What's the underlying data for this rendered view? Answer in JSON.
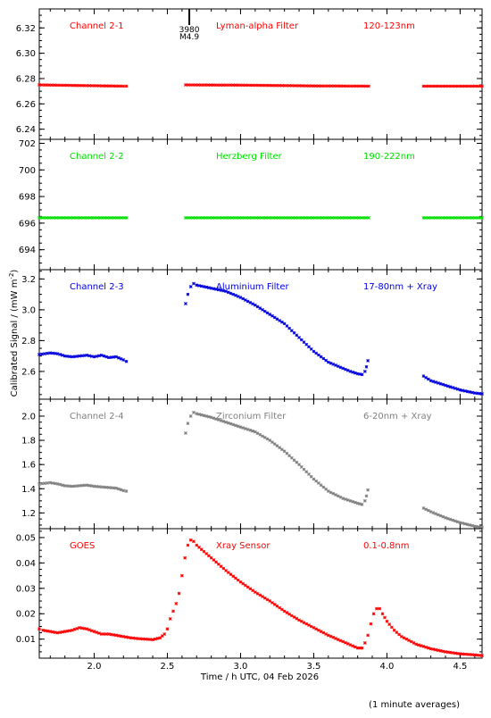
{
  "chart_data": [
    {
      "type": "scatter",
      "panel": "Channel 2-1",
      "labels": [
        "Channel 2-1",
        "Lyman-alpha Filter",
        "120-123nm"
      ],
      "color": "#ff0000",
      "ylim": [
        6.232,
        6.335
      ],
      "yticks": [
        6.24,
        6.26,
        6.28,
        6.3,
        6.32
      ],
      "ytick_labels": [
        "6.24",
        "6.26",
        "6.28",
        "6.30",
        "6.32"
      ],
      "annotation": {
        "x": 2.65,
        "lines": [
          "3980",
          "M4.9"
        ]
      },
      "series": [
        {
          "points": [
            [
              1.625,
              6.275
            ],
            [
              1.9,
              6.2745
            ],
            [
              2.2,
              6.274
            ],
            [
              2.22,
              6.274
            ]
          ]
        },
        {
          "points": [
            [
              2.625,
              6.275
            ],
            [
              3.0,
              6.2748
            ],
            [
              3.5,
              6.2742
            ],
            [
              3.875,
              6.274
            ]
          ]
        },
        {
          "points": [
            [
              4.25,
              6.274
            ],
            [
              4.65,
              6.274
            ]
          ]
        }
      ]
    },
    {
      "type": "scatter",
      "panel": "Channel 2-2",
      "labels": [
        "Channel 2-2",
        "Herzberg Filter",
        "190-222nm"
      ],
      "color": "#00e000",
      "ylim": [
        692.5,
        702.3
      ],
      "yticks": [
        694,
        696,
        698,
        700,
        702
      ],
      "ytick_labels": [
        "694",
        "696",
        "698",
        "700",
        "702"
      ],
      "series": [
        {
          "points": [
            [
              1.625,
              696.4
            ],
            [
              2.22,
              696.4
            ]
          ]
        },
        {
          "points": [
            [
              2.625,
              696.4
            ],
            [
              3.875,
              696.4
            ]
          ]
        },
        {
          "points": [
            [
              4.25,
              696.4
            ],
            [
              4.65,
              696.4
            ]
          ]
        }
      ]
    },
    {
      "type": "scatter",
      "panel": "Channel 2-3",
      "labels": [
        "Channel 2-3",
        "Aluminium Filter",
        "17-80nm + Xray"
      ],
      "color": "#0000dd",
      "ylim": [
        2.42,
        3.26
      ],
      "yticks": [
        2.6,
        2.8,
        3.0,
        3.2
      ],
      "ytick_labels": [
        "2.6",
        "2.8",
        "3.0",
        "3.2"
      ],
      "series": [
        {
          "points": [
            [
              1.625,
              2.71
            ],
            [
              1.7,
              2.72
            ],
            [
              1.75,
              2.715
            ],
            [
              1.8,
              2.7
            ],
            [
              1.85,
              2.695
            ],
            [
              1.9,
              2.7
            ],
            [
              1.95,
              2.705
            ],
            [
              2.0,
              2.695
            ],
            [
              2.05,
              2.705
            ],
            [
              2.1,
              2.69
            ],
            [
              2.15,
              2.695
            ],
            [
              2.2,
              2.675
            ],
            [
              2.22,
              2.665
            ]
          ]
        },
        {
          "points": [
            [
              2.625,
              3.04
            ],
            [
              2.64,
              3.1
            ],
            [
              2.66,
              3.15
            ],
            [
              2.68,
              3.17
            ],
            [
              2.7,
              3.16
            ],
            [
              2.75,
              3.15
            ],
            [
              2.8,
              3.14
            ],
            [
              2.9,
              3.12
            ],
            [
              3.0,
              3.08
            ],
            [
              3.1,
              3.03
            ],
            [
              3.15,
              3.0
            ],
            [
              3.2,
              2.97
            ],
            [
              3.3,
              2.91
            ],
            [
              3.4,
              2.82
            ],
            [
              3.5,
              2.73
            ],
            [
              3.6,
              2.66
            ],
            [
              3.7,
              2.62
            ],
            [
              3.75,
              2.6
            ],
            [
              3.8,
              2.585
            ],
            [
              3.83,
              2.58
            ],
            [
              3.85,
              2.6
            ],
            [
              3.86,
              2.63
            ],
            [
              3.87,
              2.67
            ]
          ]
        },
        {
          "points": [
            [
              4.25,
              2.57
            ],
            [
              4.3,
              2.54
            ],
            [
              4.4,
              2.51
            ],
            [
              4.5,
              2.48
            ],
            [
              4.6,
              2.46
            ],
            [
              4.65,
              2.455
            ]
          ]
        }
      ]
    },
    {
      "type": "scatter",
      "panel": "Channel 2-4",
      "labels": [
        "Channel 2-4",
        "Zirconium Filter",
        "6-20nm + Xray"
      ],
      "color": "#808080",
      "ylim": [
        1.07,
        2.14
      ],
      "yticks": [
        1.2,
        1.4,
        1.6,
        1.8,
        2.0
      ],
      "ytick_labels": [
        "1.2",
        "1.4",
        "1.6",
        "1.8",
        "2.0"
      ],
      "series": [
        {
          "points": [
            [
              1.625,
              1.44
            ],
            [
              1.7,
              1.45
            ],
            [
              1.75,
              1.44
            ],
            [
              1.8,
              1.425
            ],
            [
              1.85,
              1.42
            ],
            [
              1.9,
              1.425
            ],
            [
              1.95,
              1.43
            ],
            [
              2.0,
              1.42
            ],
            [
              2.05,
              1.415
            ],
            [
              2.1,
              1.41
            ],
            [
              2.15,
              1.405
            ],
            [
              2.2,
              1.385
            ],
            [
              2.22,
              1.38
            ]
          ]
        },
        {
          "points": [
            [
              2.625,
              1.86
            ],
            [
              2.64,
              1.94
            ],
            [
              2.66,
              2.0
            ],
            [
              2.68,
              2.03
            ],
            [
              2.7,
              2.02
            ],
            [
              2.8,
              1.99
            ],
            [
              2.9,
              1.95
            ],
            [
              3.0,
              1.91
            ],
            [
              3.1,
              1.87
            ],
            [
              3.2,
              1.8
            ],
            [
              3.3,
              1.71
            ],
            [
              3.4,
              1.6
            ],
            [
              3.5,
              1.48
            ],
            [
              3.6,
              1.38
            ],
            [
              3.7,
              1.32
            ],
            [
              3.75,
              1.3
            ],
            [
              3.8,
              1.28
            ],
            [
              3.83,
              1.27
            ],
            [
              3.85,
              1.3
            ],
            [
              3.86,
              1.34
            ],
            [
              3.87,
              1.39
            ]
          ]
        },
        {
          "points": [
            [
              4.25,
              1.24
            ],
            [
              4.3,
              1.21
            ],
            [
              4.4,
              1.16
            ],
            [
              4.5,
              1.12
            ],
            [
              4.6,
              1.09
            ],
            [
              4.65,
              1.08
            ]
          ]
        }
      ]
    },
    {
      "type": "scatter",
      "panel": "GOES",
      "labels": [
        "GOES",
        "Xray Sensor",
        "0.1-0.8nm"
      ],
      "color": "#ff0000",
      "ylim": [
        0.0025,
        0.0535
      ],
      "yticks": [
        0.01,
        0.02,
        0.03,
        0.04,
        0.05
      ],
      "ytick_labels": [
        "0.01",
        "0.02",
        "0.03",
        "0.04",
        "0.05"
      ],
      "series": [
        {
          "points": [
            [
              1.625,
              0.014
            ],
            [
              1.65,
              0.0135
            ],
            [
              1.7,
              0.013
            ],
            [
              1.75,
              0.0125
            ],
            [
              1.8,
              0.013
            ],
            [
              1.85,
              0.0135
            ],
            [
              1.9,
              0.0145
            ],
            [
              1.95,
              0.014
            ],
            [
              2.0,
              0.013
            ],
            [
              2.05,
              0.012
            ],
            [
              2.1,
              0.012
            ],
            [
              2.15,
              0.0115
            ],
            [
              2.2,
              0.011
            ],
            [
              2.25,
              0.0105
            ],
            [
              2.3,
              0.0102
            ],
            [
              2.35,
              0.01
            ],
            [
              2.4,
              0.0098
            ],
            [
              2.45,
              0.0105
            ],
            [
              2.48,
              0.012
            ],
            [
              2.5,
              0.014
            ],
            [
              2.52,
              0.018
            ],
            [
              2.54,
              0.021
            ],
            [
              2.56,
              0.024
            ],
            [
              2.58,
              0.028
            ],
            [
              2.6,
              0.035
            ],
            [
              2.62,
              0.042
            ],
            [
              2.64,
              0.047
            ],
            [
              2.66,
              0.049
            ],
            [
              2.68,
              0.0485
            ],
            [
              2.7,
              0.047
            ],
            [
              2.8,
              0.042
            ],
            [
              2.9,
              0.037
            ],
            [
              3.0,
              0.0325
            ],
            [
              3.1,
              0.0285
            ],
            [
              3.2,
              0.025
            ],
            [
              3.3,
              0.021
            ],
            [
              3.4,
              0.0175
            ],
            [
              3.5,
              0.0145
            ],
            [
              3.6,
              0.0115
            ],
            [
              3.7,
              0.009
            ],
            [
              3.8,
              0.0065
            ],
            [
              3.83,
              0.0065
            ],
            [
              3.85,
              0.0085
            ],
            [
              3.87,
              0.0115
            ],
            [
              3.89,
              0.016
            ],
            [
              3.91,
              0.02
            ],
            [
              3.93,
              0.022
            ],
            [
              3.95,
              0.022
            ],
            [
              3.97,
              0.02
            ],
            [
              4.0,
              0.017
            ],
            [
              4.05,
              0.0135
            ],
            [
              4.1,
              0.011
            ],
            [
              4.2,
              0.008
            ],
            [
              4.3,
              0.0062
            ],
            [
              4.4,
              0.005
            ],
            [
              4.5,
              0.0042
            ],
            [
              4.6,
              0.0038
            ],
            [
              4.65,
              0.0035
            ]
          ]
        }
      ]
    }
  ],
  "axes": {
    "xlim": [
      1.625,
      4.65
    ],
    "xticks": [
      2.0,
      2.5,
      3.0,
      3.5,
      4.0,
      4.5
    ],
    "xtick_labels": [
      "2.0",
      "2.5",
      "3.0",
      "3.5",
      "4.0",
      "4.5"
    ],
    "xlabel": "Time / h UTC, 04 Feb 2026",
    "ylabel": "Calibrated Signal / (mW m",
    "ylabel_sup": "-2",
    "ylabel_end": ")"
  },
  "footnote": "(1 minute averages)"
}
